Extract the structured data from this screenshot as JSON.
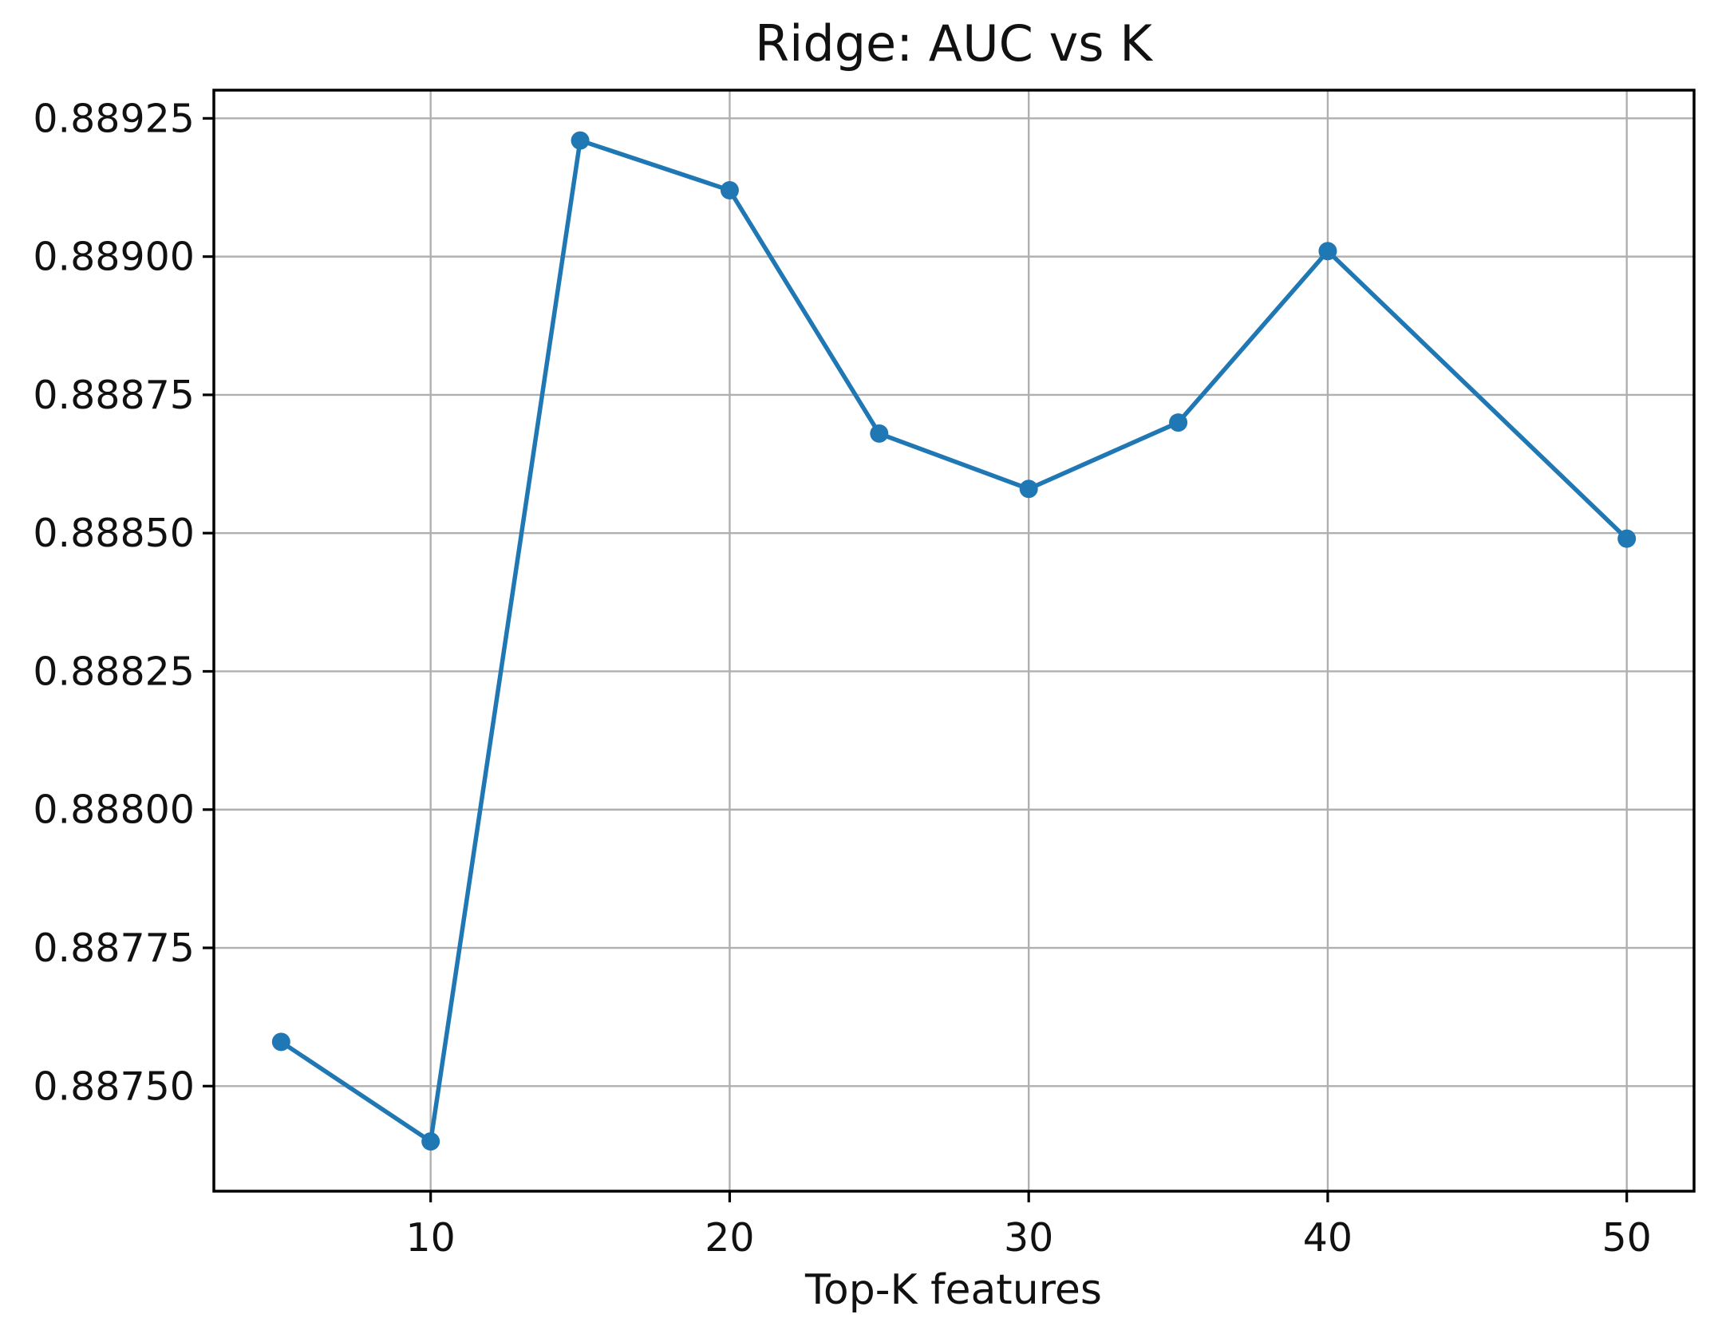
{
  "chart_data": {
    "type": "line",
    "title": "Ridge: AUC vs K",
    "xlabel": "Top-K features",
    "ylabel": "",
    "x": [
      5,
      10,
      15,
      20,
      25,
      30,
      35,
      40,
      50
    ],
    "y": [
      0.88758,
      0.8874,
      0.88921,
      0.88912,
      0.88868,
      0.88858,
      0.8887,
      0.88901,
      0.88849
    ],
    "xlim": [
      2.75,
      52.25
    ],
    "ylim": [
      0.88731,
      0.889301
    ],
    "xticks": {
      "values": [
        10,
        20,
        30,
        40,
        50
      ],
      "labels": [
        "10",
        "20",
        "30",
        "40",
        "50"
      ]
    },
    "yticks": {
      "values": [
        0.8875,
        0.88775,
        0.888,
        0.88825,
        0.8885,
        0.88875,
        0.889,
        0.88925
      ],
      "labels": [
        "0.88750",
        "0.88775",
        "0.88800",
        "0.88825",
        "0.88850",
        "0.88875",
        "0.88900",
        "0.88925"
      ]
    },
    "grid": true,
    "legend": false,
    "marker": "o",
    "line_color": "#1f77b4",
    "grid_color": "#b0b0b0",
    "spine_color": "#000000",
    "text_color": "#111111",
    "background_color": "#ffffff"
  }
}
